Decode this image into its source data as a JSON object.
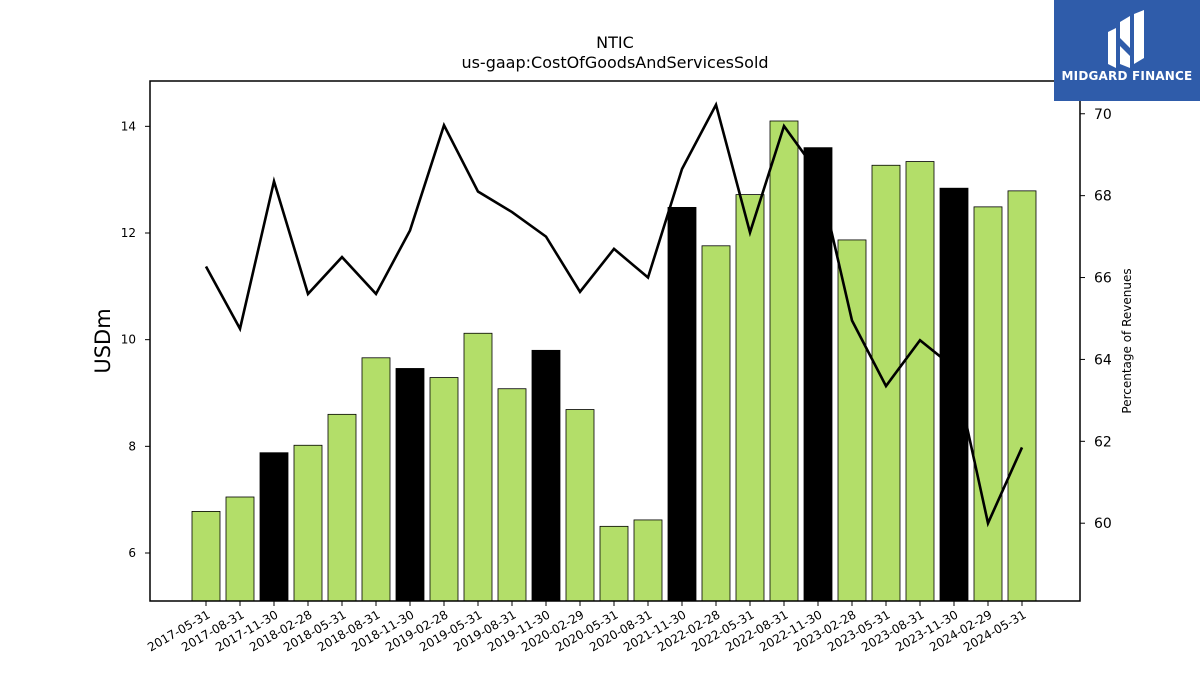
{
  "brand": {
    "name": "MIDGARD FINANCE",
    "color": "#2f5caa"
  },
  "chart_data": {
    "type": "bar",
    "title": "NTIC",
    "subtitle": "us-gaap:CostOfGoodsAndServicesSold",
    "ylabel": "USDm",
    "ylabel_right": "Percentage of Revenues",
    "ylim": [
      5.1,
      14.85
    ],
    "y2lim": [
      58.1,
      70.8
    ],
    "yticks": [
      6,
      8,
      10,
      12,
      14
    ],
    "y2ticks": [
      60,
      62,
      64,
      66,
      68,
      70
    ],
    "categories": [
      "2017-05-31",
      "2017-08-31",
      "2017-11-30",
      "2018-02-28",
      "2018-05-31",
      "2018-08-31",
      "2018-11-30",
      "2019-02-28",
      "2019-05-31",
      "2019-08-31",
      "2019-11-30",
      "2020-02-29",
      "2020-05-31",
      "2020-08-31",
      "2021-11-30",
      "2022-02-28",
      "2022-05-31",
      "2022-08-31",
      "2022-11-30",
      "2023-02-28",
      "2023-05-31",
      "2023-08-31",
      "2023-11-30",
      "2024-02-29",
      "2024-05-31"
    ],
    "series": [
      {
        "kind": "bar",
        "values": [
          6.78,
          7.05,
          7.88,
          8.02,
          8.6,
          9.66,
          9.46,
          9.29,
          10.12,
          9.08,
          9.8,
          8.69,
          6.5,
          6.62,
          12.48,
          11.76,
          12.72,
          14.1,
          13.6,
          11.87,
          13.27,
          13.34,
          12.84,
          12.49,
          12.79
        ],
        "colors": [
          "#b3de69",
          "#b3de69",
          "#000000",
          "#b3de69",
          "#b3de69",
          "#b3de69",
          "#000000",
          "#b3de69",
          "#b3de69",
          "#b3de69",
          "#000000",
          "#b3de69",
          "#b3de69",
          "#b3de69",
          "#000000",
          "#b3de69",
          "#b3de69",
          "#b3de69",
          "#000000",
          "#b3de69",
          "#b3de69",
          "#b3de69",
          "#000000",
          "#b3de69",
          "#b3de69"
        ]
      },
      {
        "kind": "line",
        "axis": "right",
        "color": "#000000",
        "values": [
          66.27,
          64.75,
          68.35,
          65.6,
          66.5,
          65.6,
          67.15,
          69.72,
          68.1,
          67.6,
          67.0,
          65.65,
          66.7,
          66.0,
          68.65,
          70.22,
          67.1,
          69.7,
          68.55,
          64.95,
          63.35,
          64.47,
          63.8,
          60.0,
          61.85
        ]
      }
    ],
    "grid": false,
    "legend": "none"
  }
}
